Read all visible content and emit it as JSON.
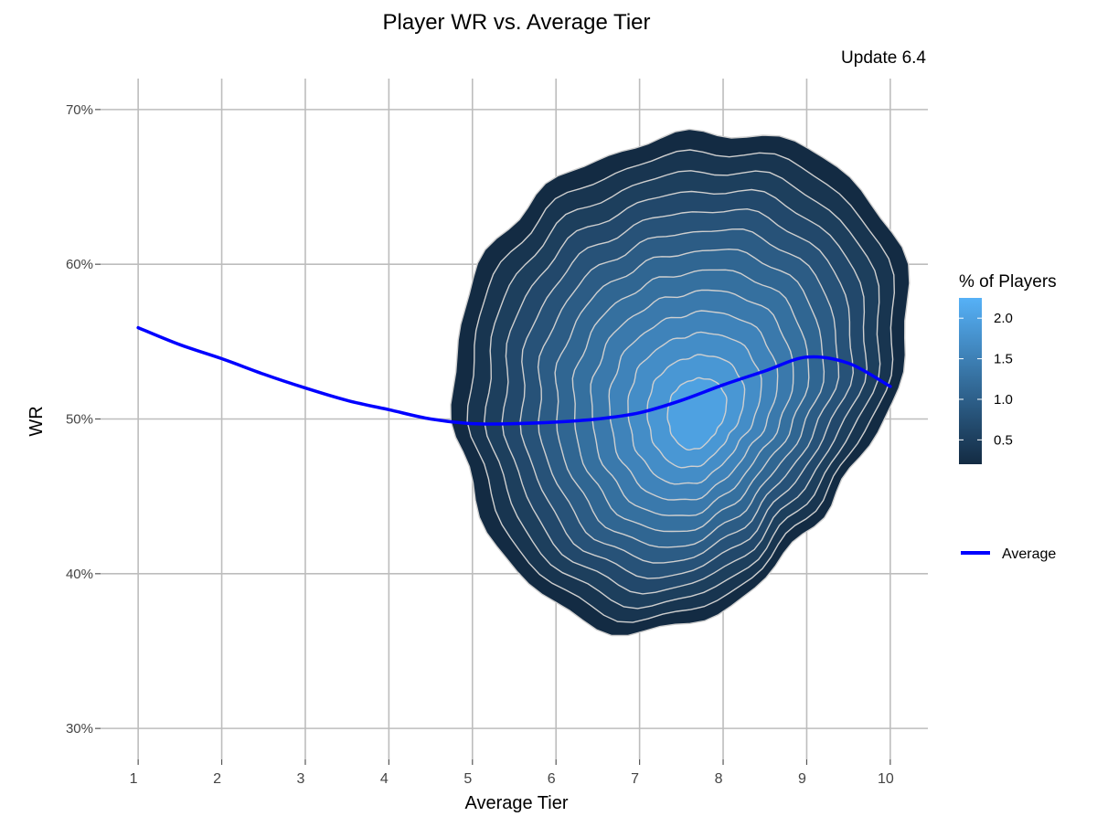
{
  "chart_data": {
    "type": "density-contour",
    "title": "Player WR vs. Average Tier",
    "subtitle": "Update 6.4",
    "xlabel": "Average Tier",
    "ylabel": "WR",
    "xlim": [
      0.55,
      10.45
    ],
    "ylim": [
      0.28,
      0.72
    ],
    "x_ticks": [
      1,
      2,
      3,
      4,
      5,
      6,
      7,
      8,
      9,
      10
    ],
    "x_tick_labels": [
      "1",
      "2",
      "3",
      "4",
      "5",
      "6",
      "7",
      "8",
      "9",
      "10"
    ],
    "y_ticks": [
      0.3,
      0.4,
      0.5,
      0.6,
      0.7
    ],
    "y_tick_labels": [
      "30%",
      "40%",
      "50%",
      "60%",
      "70%"
    ],
    "grid": true,
    "legend_position": "right",
    "fill_legend": {
      "title": "% of Players",
      "range": [
        0.2,
        2.25
      ],
      "breaks": [
        0.5,
        1.0,
        1.5,
        2.0
      ],
      "break_labels": [
        "0.5",
        "1.0",
        "1.5",
        "2.0"
      ],
      "color_low": "#132b43",
      "color_high": "#56b1f7"
    },
    "density": {
      "peak_x": 7.7,
      "peak_y": 0.502,
      "levels": [
        0.2,
        0.35,
        0.5,
        0.65,
        0.8,
        0.95,
        1.1,
        1.25,
        1.4,
        1.55,
        1.7,
        1.85,
        2.0
      ],
      "contour_color": "#cfcfcf",
      "outer_extent": {
        "x": [
          4.85,
          10.0
        ],
        "y": [
          0.378,
          0.683
        ]
      }
    },
    "series": [
      {
        "name": "Average",
        "color": "#0000ff",
        "x": [
          1,
          1.5,
          2,
          2.5,
          3,
          3.5,
          4,
          4.5,
          5,
          5.5,
          6,
          6.5,
          7,
          7.5,
          8,
          8.5,
          9,
          9.5,
          10
        ],
        "y": [
          0.559,
          0.548,
          0.539,
          0.529,
          0.52,
          0.512,
          0.506,
          0.5,
          0.497,
          0.497,
          0.498,
          0.5,
          0.504,
          0.512,
          0.522,
          0.531,
          0.54,
          0.536,
          0.521
        ]
      }
    ]
  }
}
